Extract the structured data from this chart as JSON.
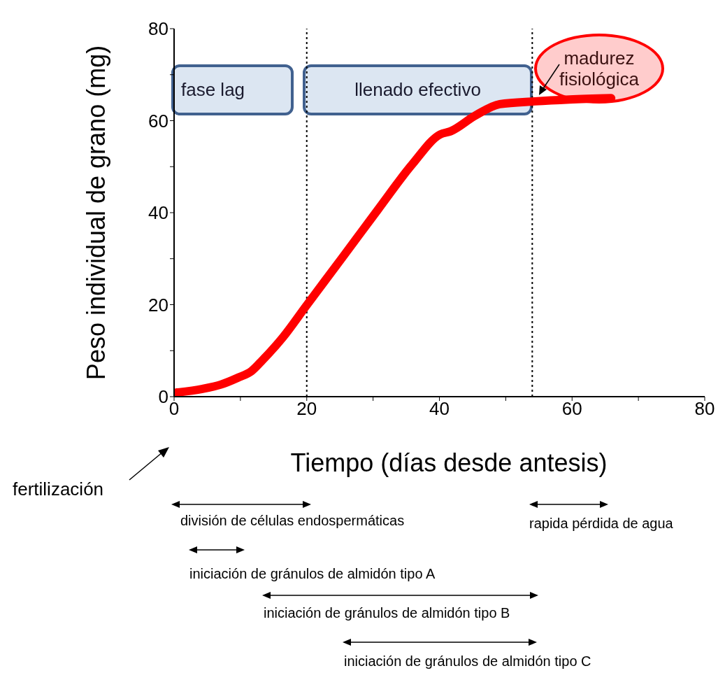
{
  "chart_data": {
    "type": "line",
    "xlabel": "Tiempo (días desde antesis)",
    "ylabel": "Peso individual de grano (mg)",
    "x": [
      0.4,
      4.3,
      7.0,
      9.6,
      11.7,
      13.3,
      16.4,
      19.9,
      25.4,
      30.7,
      35.9,
      40.1,
      41.7,
      45.4,
      49.1,
      54.4,
      59.6,
      65.9
    ],
    "series": [
      {
        "color": "#ff0000",
        "values": [
          0.9,
          1.7,
          2.6,
          4.1,
          5.6,
          7.9,
          12.9,
          19.7,
          30.3,
          40.6,
          50.5,
          57.0,
          57.7,
          61.1,
          63.6,
          64.2,
          64.6,
          64.9
        ]
      }
    ],
    "xlim": [
      0,
      80
    ],
    "xticks": [
      0,
      {
        "value": 10,
        "label": null
      },
      20,
      {
        "value": 30,
        "label": null
      },
      40,
      {
        "value": 50,
        "label": null
      },
      60,
      {
        "value": 70,
        "label": null
      },
      80
    ],
    "ylim": [
      0,
      80
    ],
    "yticks": [
      0,
      {
        "value": 10,
        "label": null
      },
      20,
      {
        "value": 30,
        "label": null
      },
      40,
      {
        "value": 50,
        "label": null
      },
      60,
      {
        "value": 70,
        "label": null
      },
      80
    ],
    "marker": "none",
    "line_style": "solid",
    "ref_lines": [
      {
        "axis": "x",
        "value": 20,
        "color": "#000000",
        "line_style": "dotted"
      },
      {
        "axis": "x",
        "value": 54,
        "color": "#000000",
        "line_style": "dotted"
      }
    ],
    "annotations": [
      "fase lag",
      "llenado efectivo",
      "madurez fisiológica",
      "fertilización",
      "división de células endospermáticas",
      "rapida pérdida de agua",
      "iniciación de gránulos de almidón tipo A",
      "iniciación de gránulos de almidón tipo B",
      "iniciación de gránulos de almidón tipo C"
    ]
  }
}
